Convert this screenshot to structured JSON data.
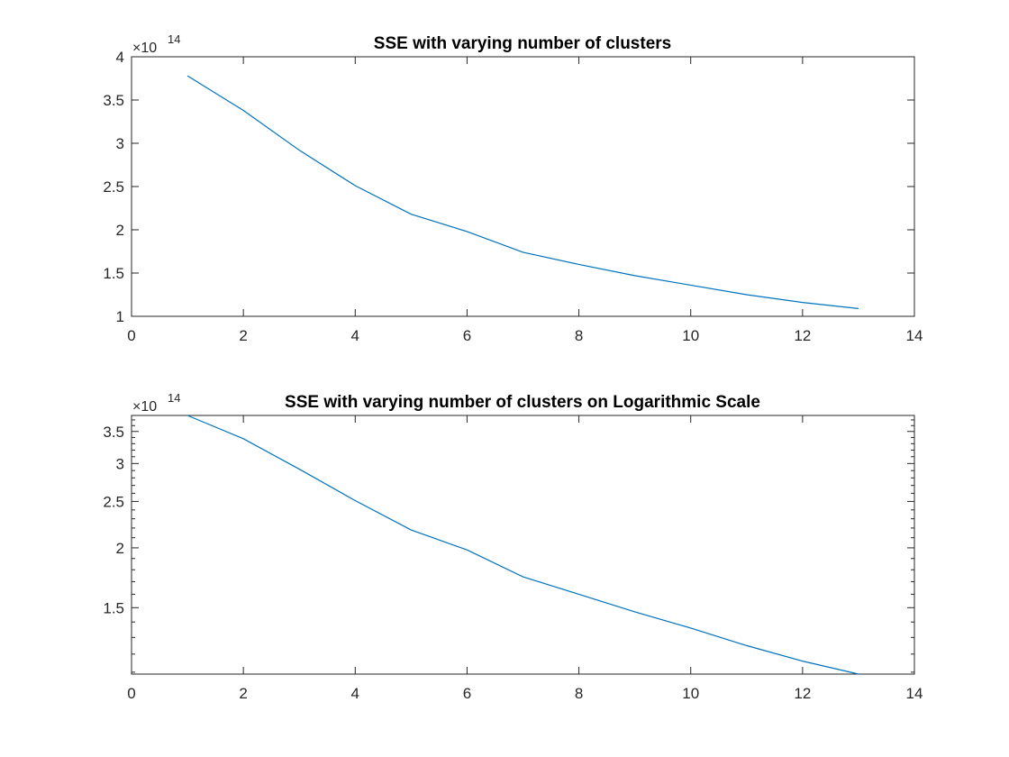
{
  "chart_data": [
    {
      "type": "line",
      "title": "SSE with varying number of clusters",
      "xlabel": "",
      "ylabel": "",
      "y_exponent_label": "×10",
      "y_exponent": "14",
      "y_scale": "linear",
      "xlim": [
        0,
        14
      ],
      "ylim": [
        1,
        4
      ],
      "x_ticks": [
        "0",
        "2",
        "4",
        "6",
        "8",
        "10",
        "12",
        "14"
      ],
      "x_tick_values": [
        0,
        2,
        4,
        6,
        8,
        10,
        12,
        14
      ],
      "y_ticks": [
        "1",
        "1.5",
        "2",
        "2.5",
        "3",
        "3.5",
        "4"
      ],
      "y_tick_values": [
        1,
        1.5,
        2,
        2.5,
        3,
        3.5,
        4
      ],
      "grid": false,
      "series": [
        {
          "name": "SSE",
          "color": "#0072bd",
          "x": [
            1,
            2,
            3,
            4,
            5,
            6,
            7,
            8,
            9,
            10,
            11,
            12,
            13
          ],
          "values": [
            3.78,
            3.38,
            2.92,
            2.51,
            2.18,
            1.98,
            1.74,
            1.6,
            1.47,
            1.36,
            1.25,
            1.16,
            1.09
          ]
        }
      ]
    },
    {
      "type": "line",
      "title": "SSE with varying number of clusters on Logarithmic Scale",
      "xlabel": "",
      "ylabel": "",
      "y_exponent_label": "×10",
      "y_exponent": "14",
      "y_scale": "log",
      "xlim": [
        0,
        14
      ],
      "ylim": [
        1.09,
        3.78
      ],
      "x_ticks": [
        "0",
        "2",
        "4",
        "6",
        "8",
        "10",
        "12",
        "14"
      ],
      "x_tick_values": [
        0,
        2,
        4,
        6,
        8,
        10,
        12,
        14
      ],
      "y_ticks": [
        "1.5",
        "2",
        "2.5",
        "3",
        "3.5"
      ],
      "y_tick_values": [
        1.5,
        2,
        2.5,
        3,
        3.5
      ],
      "y_minor_tick_values": [
        1.1,
        1.2,
        1.3,
        1.4,
        1.6,
        1.7,
        1.8,
        1.9,
        2.1,
        2.2,
        2.3,
        2.4,
        2.6,
        2.7,
        2.8,
        2.9,
        3.1,
        3.2,
        3.3,
        3.4,
        3.6,
        3.7
      ],
      "grid": false,
      "series": [
        {
          "name": "SSE",
          "color": "#0072bd",
          "x": [
            1,
            2,
            3,
            4,
            5,
            6,
            7,
            8,
            9,
            10,
            11,
            12,
            13
          ],
          "values": [
            3.78,
            3.38,
            2.92,
            2.51,
            2.18,
            1.98,
            1.74,
            1.6,
            1.47,
            1.36,
            1.25,
            1.16,
            1.09
          ]
        }
      ]
    }
  ]
}
